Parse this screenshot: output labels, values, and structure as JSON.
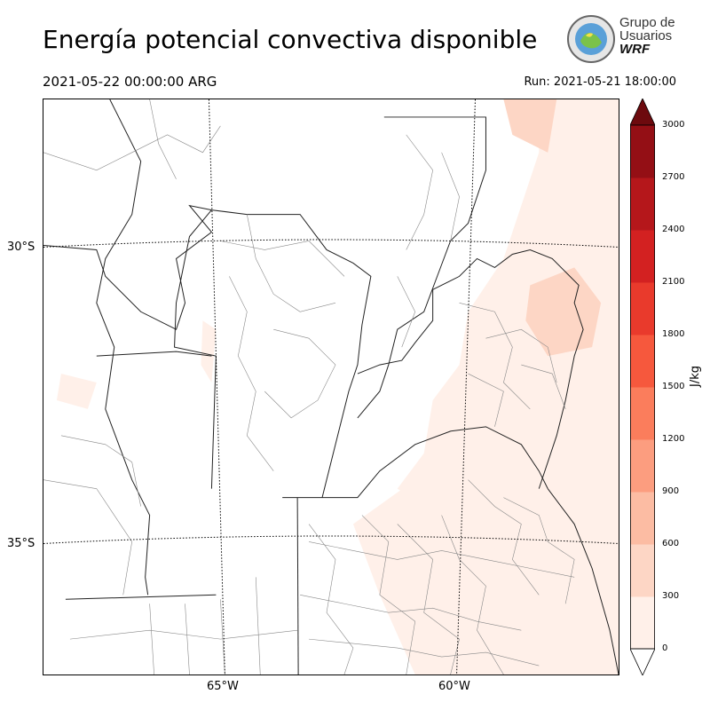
{
  "header": {
    "title": "Energía potencial convectiva disponible",
    "valid_time": "2021-05-22 00:00:00 ARG",
    "run_time": "Run: 2021-05-21 18:00:00"
  },
  "logo": {
    "line1": "Grupo de",
    "line2": "Usuarios",
    "line3": "WRF"
  },
  "map": {
    "lat_labels": [
      "30°S",
      "35°S"
    ],
    "lon_labels": [
      "65°W",
      "60°W"
    ]
  },
  "colorbar": {
    "unit": "J/kg",
    "ticks": [
      "0",
      "300",
      "600",
      "900",
      "1200",
      "1500",
      "1800",
      "2100",
      "2400",
      "2700",
      "3000"
    ],
    "colors": [
      "#fff0e9",
      "#fdd6c5",
      "#fcbca3",
      "#fc9d7f",
      "#fb7d5c",
      "#f6583d",
      "#e93a2c",
      "#d32121",
      "#b5171b",
      "#940f15",
      "#6d0a0e"
    ]
  }
}
